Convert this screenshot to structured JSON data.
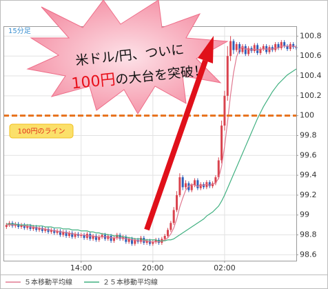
{
  "chart_data": {
    "type": "candlestick",
    "annotations": {
      "period": "15分足",
      "headline_1": "米ドル/円、ついに",
      "headline_2a": "100円",
      "headline_2b": "の大台を突破！"
    },
    "hline": {
      "value": 100,
      "label": "100円のライン",
      "color": "#e8701a"
    },
    "up_color": "#d9434e",
    "down_color": "#2f5fb8",
    "grid": true,
    "xlim": [
      7.5,
      32
    ],
    "xticks": [
      {
        "value": 14,
        "label": "14:00"
      },
      {
        "value": 20,
        "label": "20:00"
      },
      {
        "value": 26,
        "label": "02:00"
      }
    ],
    "ylim": [
      98.54,
      100.9
    ],
    "yticks": [
      98.6,
      98.8,
      99,
      99.2,
      99.4,
      99.6,
      99.8,
      100,
      100.2,
      100.4,
      100.6,
      100.8
    ],
    "x": [
      7.75,
      8,
      8.25,
      8.5,
      8.75,
      9,
      9.25,
      9.5,
      9.75,
      10,
      10.25,
      10.5,
      10.75,
      11,
      11.25,
      11.5,
      11.75,
      12,
      12.25,
      12.5,
      12.75,
      13,
      13.25,
      13.5,
      13.75,
      14,
      14.25,
      14.5,
      14.75,
      15,
      15.25,
      15.5,
      15.75,
      16,
      16.25,
      16.5,
      16.75,
      17,
      17.25,
      17.5,
      17.75,
      18,
      18.25,
      18.5,
      18.75,
      19,
      19.25,
      19.5,
      19.75,
      20,
      20.25,
      20.5,
      20.75,
      21,
      21.25,
      21.5,
      21.75,
      22,
      22.25,
      22.5,
      22.75,
      23,
      23.25,
      23.5,
      23.75,
      24,
      24.25,
      24.5,
      24.75,
      25,
      25.25,
      25.5,
      25.75,
      26,
      26.25,
      26.5,
      26.75,
      27,
      27.25,
      27.5,
      27.75,
      28,
      28.25,
      28.5,
      28.75,
      29,
      29.25,
      29.5,
      29.75,
      30,
      30.25,
      30.5,
      30.75,
      31,
      31.25,
      31.5,
      31.75,
      32
    ],
    "ohlc": [
      [
        98.88,
        98.92,
        98.86,
        98.9
      ],
      [
        98.9,
        98.94,
        98.88,
        98.92
      ],
      [
        98.92,
        98.94,
        98.87,
        98.89
      ],
      [
        98.89,
        98.93,
        98.87,
        98.91
      ],
      [
        98.91,
        98.93,
        98.86,
        98.88
      ],
      [
        98.88,
        98.92,
        98.86,
        98.9
      ],
      [
        98.9,
        98.92,
        98.85,
        98.87
      ],
      [
        98.87,
        98.91,
        98.85,
        98.89
      ],
      [
        98.89,
        98.91,
        98.84,
        98.86
      ],
      [
        98.86,
        98.9,
        98.84,
        98.88
      ],
      [
        98.88,
        98.9,
        98.83,
        98.85
      ],
      [
        98.85,
        98.89,
        98.83,
        98.87
      ],
      [
        98.87,
        98.89,
        98.82,
        98.84
      ],
      [
        98.84,
        98.88,
        98.82,
        98.86
      ],
      [
        98.86,
        98.88,
        98.81,
        98.83
      ],
      [
        98.83,
        98.87,
        98.81,
        98.85
      ],
      [
        98.85,
        98.87,
        98.8,
        98.82
      ],
      [
        98.82,
        98.86,
        98.8,
        98.84
      ],
      [
        98.84,
        98.86,
        98.78,
        98.8
      ],
      [
        98.8,
        98.85,
        98.78,
        98.83
      ],
      [
        98.83,
        98.85,
        98.77,
        98.79
      ],
      [
        98.79,
        98.84,
        98.77,
        98.82
      ],
      [
        98.82,
        98.84,
        98.76,
        98.78
      ],
      [
        98.78,
        98.83,
        98.76,
        98.81
      ],
      [
        98.81,
        98.83,
        98.77,
        98.79
      ],
      [
        98.79,
        98.82,
        98.77,
        98.8
      ],
      [
        98.8,
        98.82,
        98.75,
        98.77
      ],
      [
        98.77,
        98.83,
        98.75,
        98.81
      ],
      [
        98.81,
        98.83,
        98.74,
        98.76
      ],
      [
        98.76,
        98.81,
        98.74,
        98.79
      ],
      [
        98.79,
        98.81,
        98.73,
        98.75
      ],
      [
        98.75,
        98.8,
        98.73,
        98.78
      ],
      [
        98.78,
        98.82,
        98.76,
        98.8
      ],
      [
        98.8,
        98.82,
        98.74,
        98.76
      ],
      [
        98.76,
        98.81,
        98.74,
        98.79
      ],
      [
        98.79,
        98.81,
        98.72,
        98.74
      ],
      [
        98.74,
        98.79,
        98.72,
        98.77
      ],
      [
        98.77,
        98.82,
        98.75,
        98.8
      ],
      [
        98.8,
        98.82,
        98.74,
        98.76
      ],
      [
        98.76,
        98.8,
        98.74,
        98.78
      ],
      [
        98.78,
        98.8,
        98.71,
        98.73
      ],
      [
        98.73,
        98.78,
        98.71,
        98.76
      ],
      [
        98.76,
        98.78,
        98.69,
        98.71
      ],
      [
        98.71,
        98.77,
        98.69,
        98.75
      ],
      [
        98.75,
        98.77,
        98.71,
        98.73
      ],
      [
        98.73,
        98.79,
        98.71,
        98.77
      ],
      [
        98.77,
        98.79,
        98.7,
        98.72
      ],
      [
        98.72,
        98.76,
        98.7,
        98.74
      ],
      [
        98.74,
        98.76,
        98.69,
        98.71
      ],
      [
        98.71,
        98.75,
        98.69,
        98.73
      ],
      [
        98.73,
        98.77,
        98.71,
        98.75
      ],
      [
        98.75,
        98.77,
        98.7,
        98.72
      ],
      [
        98.72,
        98.78,
        98.7,
        98.76
      ],
      [
        98.76,
        98.81,
        98.74,
        98.79
      ],
      [
        98.79,
        98.87,
        98.77,
        98.85
      ],
      [
        98.85,
        98.94,
        98.83,
        98.92
      ],
      [
        98.92,
        99.08,
        98.9,
        99.05
      ],
      [
        99.05,
        99.24,
        99.03,
        99.2
      ],
      [
        99.2,
        99.42,
        99.18,
        99.38
      ],
      [
        99.38,
        99.4,
        99.25,
        99.28
      ],
      [
        99.28,
        99.35,
        99.26,
        99.32
      ],
      [
        99.32,
        99.34,
        99.23,
        99.25
      ],
      [
        99.25,
        99.32,
        99.23,
        99.3
      ],
      [
        99.3,
        99.37,
        99.28,
        99.35
      ],
      [
        99.35,
        99.37,
        99.25,
        99.27
      ],
      [
        99.27,
        99.33,
        99.25,
        99.31
      ],
      [
        99.31,
        99.33,
        99.26,
        99.28
      ],
      [
        99.28,
        99.35,
        99.26,
        99.33
      ],
      [
        99.33,
        99.35,
        99.27,
        99.29
      ],
      [
        99.29,
        99.34,
        99.27,
        99.32
      ],
      [
        99.32,
        99.4,
        99.3,
        99.38
      ],
      [
        99.38,
        99.58,
        99.36,
        99.55
      ],
      [
        99.55,
        99.95,
        99.52,
        99.9
      ],
      [
        99.9,
        100.25,
        99.85,
        100.2
      ],
      [
        100.2,
        100.7,
        100.15,
        100.6
      ],
      [
        100.6,
        100.8,
        100.55,
        100.75
      ],
      [
        100.75,
        100.77,
        100.62,
        100.66
      ],
      [
        100.66,
        100.74,
        100.64,
        100.72
      ],
      [
        100.72,
        100.74,
        100.62,
        100.64
      ],
      [
        100.64,
        100.72,
        100.62,
        100.7
      ],
      [
        100.7,
        100.72,
        100.6,
        100.62
      ],
      [
        100.62,
        100.7,
        100.6,
        100.68
      ],
      [
        100.68,
        100.7,
        100.63,
        100.65
      ],
      [
        100.65,
        100.73,
        100.63,
        100.71
      ],
      [
        100.71,
        100.73,
        100.61,
        100.63
      ],
      [
        100.63,
        100.69,
        100.61,
        100.67
      ],
      [
        100.67,
        100.72,
        100.65,
        100.7
      ],
      [
        100.7,
        100.72,
        100.62,
        100.64
      ],
      [
        100.64,
        100.71,
        100.62,
        100.69
      ],
      [
        100.69,
        100.71,
        100.64,
        100.66
      ],
      [
        100.66,
        100.74,
        100.64,
        100.72
      ],
      [
        100.72,
        100.74,
        100.66,
        100.68
      ],
      [
        100.68,
        100.76,
        100.66,
        100.74
      ],
      [
        100.74,
        100.76,
        100.68,
        100.7
      ],
      [
        100.7,
        100.72,
        100.65,
        100.67
      ],
      [
        100.67,
        100.74,
        100.65,
        100.72
      ],
      [
        100.72,
        100.74,
        100.67,
        100.69
      ],
      [
        100.69,
        100.71,
        100.66,
        100.68
      ]
    ],
    "series": [
      {
        "name": "５本移動平均線",
        "color": "#e07890",
        "values": [
          98.9,
          98.9,
          98.9,
          98.9,
          98.9,
          98.9,
          98.89,
          98.89,
          98.88,
          98.88,
          98.87,
          98.87,
          98.86,
          98.86,
          98.85,
          98.85,
          98.84,
          98.84,
          98.83,
          98.83,
          98.82,
          98.82,
          98.81,
          98.81,
          98.8,
          98.8,
          98.8,
          98.79,
          98.79,
          98.79,
          98.78,
          98.78,
          98.78,
          98.78,
          98.78,
          98.77,
          98.77,
          98.77,
          98.77,
          98.77,
          98.76,
          98.76,
          98.75,
          98.75,
          98.74,
          98.74,
          98.74,
          98.74,
          98.73,
          98.73,
          98.73,
          98.73,
          98.74,
          98.75,
          98.77,
          98.81,
          98.87,
          98.96,
          99.08,
          99.17,
          99.25,
          99.29,
          99.31,
          99.3,
          99.29,
          99.3,
          99.3,
          99.31,
          99.3,
          99.31,
          99.32,
          99.37,
          99.49,
          99.69,
          99.94,
          100.21,
          100.43,
          100.59,
          100.67,
          100.69,
          100.67,
          100.67,
          100.66,
          100.67,
          100.66,
          100.67,
          100.67,
          100.67,
          100.67,
          100.67,
          100.68,
          100.68,
          100.7,
          100.7,
          100.7,
          100.7,
          100.7,
          100.69
        ]
      },
      {
        "name": "２５本移動平均線",
        "color": "#40b080",
        "values": [
          98.91,
          98.91,
          98.91,
          98.91,
          98.9,
          98.9,
          98.9,
          98.9,
          98.9,
          98.89,
          98.89,
          98.89,
          98.89,
          98.88,
          98.88,
          98.88,
          98.87,
          98.87,
          98.87,
          98.86,
          98.86,
          98.86,
          98.85,
          98.85,
          98.85,
          98.84,
          98.84,
          98.84,
          98.83,
          98.83,
          98.82,
          98.82,
          98.81,
          98.81,
          98.8,
          98.8,
          98.79,
          98.79,
          98.79,
          98.78,
          98.78,
          98.77,
          98.77,
          98.76,
          98.76,
          98.76,
          98.75,
          98.75,
          98.75,
          98.75,
          98.75,
          98.74,
          98.74,
          98.74,
          98.75,
          98.75,
          98.76,
          98.78,
          98.8,
          98.82,
          98.84,
          98.86,
          98.88,
          98.9,
          98.92,
          98.94,
          98.96,
          98.99,
          99.01,
          99.03,
          99.06,
          99.09,
          99.14,
          99.2,
          99.27,
          99.34,
          99.41,
          99.48,
          99.55,
          99.62,
          99.69,
          99.76,
          99.83,
          99.9,
          99.97,
          100.03,
          100.09,
          100.14,
          100.19,
          100.24,
          100.28,
          100.32,
          100.35,
          100.38,
          100.41,
          100.43,
          100.45,
          100.47
        ]
      }
    ]
  }
}
